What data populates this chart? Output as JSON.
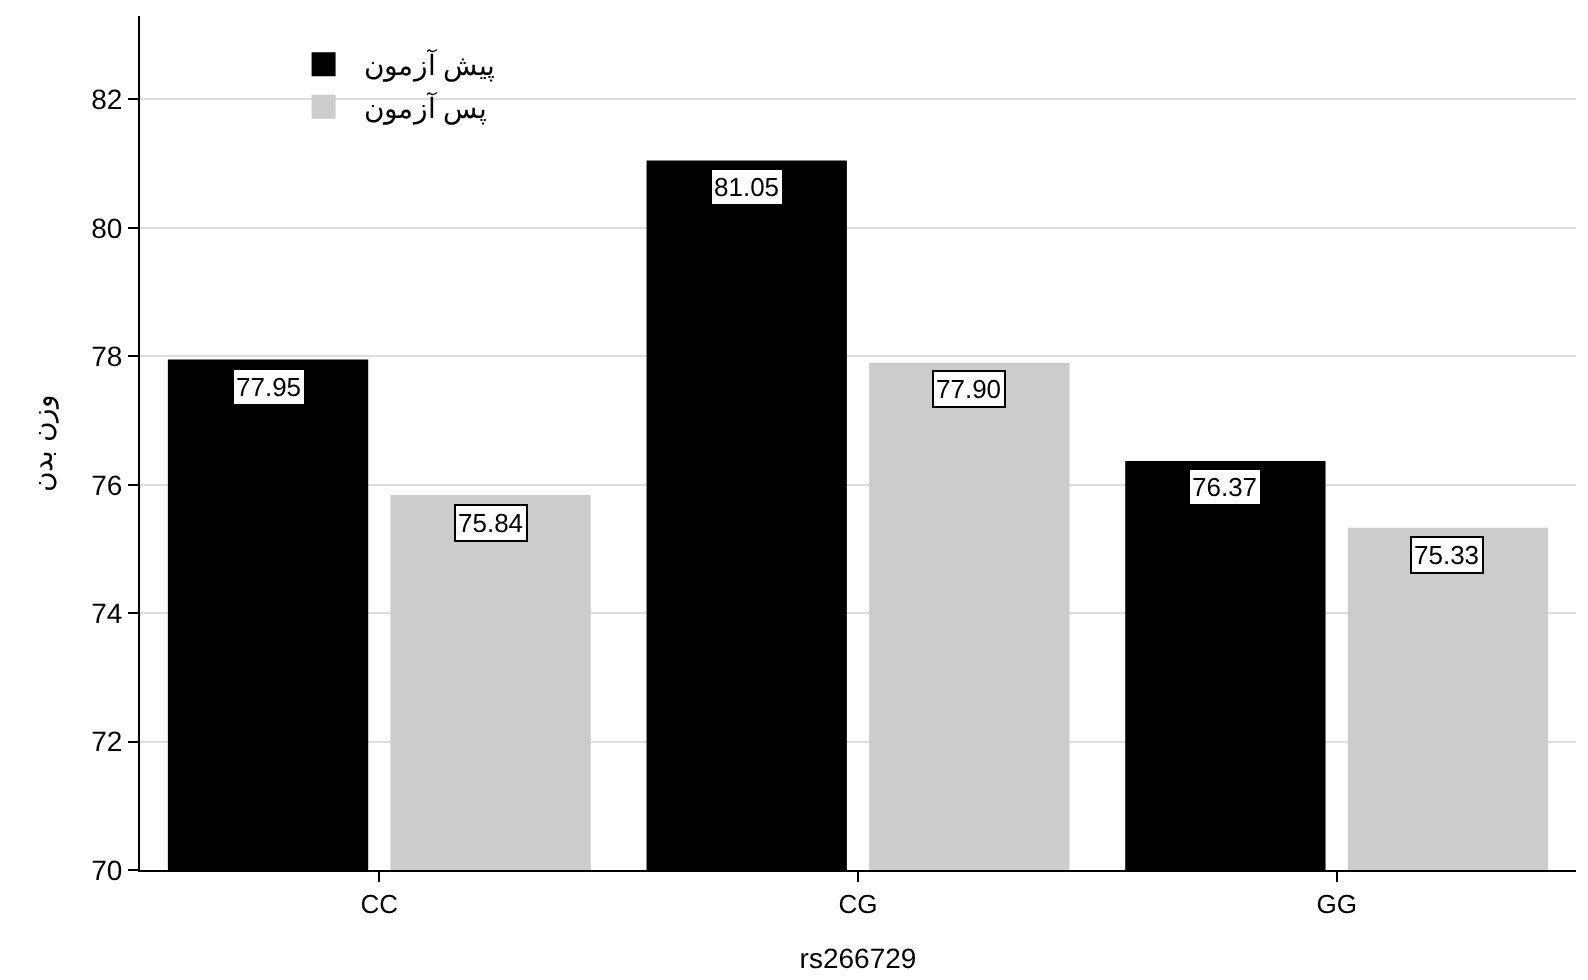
{
  "chart_data": {
    "type": "bar",
    "xlabel": "rs266729",
    "ylabel": "وزن بدن",
    "categories": [
      "CC",
      "CG",
      "GG"
    ],
    "series": [
      {
        "name": "پیش آزمون",
        "color": "#000000",
        "values": [
          77.95,
          81.05,
          76.37
        ],
        "value_labels": [
          "77.95",
          "81.05",
          "76.37"
        ]
      },
      {
        "name": "پس آزمون",
        "color": "#cccccc",
        "values": [
          75.84,
          77.9,
          75.33
        ],
        "value_labels": [
          "75.84",
          "77.90",
          "75.33"
        ]
      }
    ],
    "ylim": [
      70,
      83.3
    ],
    "yticks": [
      70,
      72,
      74,
      76,
      78,
      80,
      82
    ],
    "grid": "y",
    "legend": "top left"
  }
}
